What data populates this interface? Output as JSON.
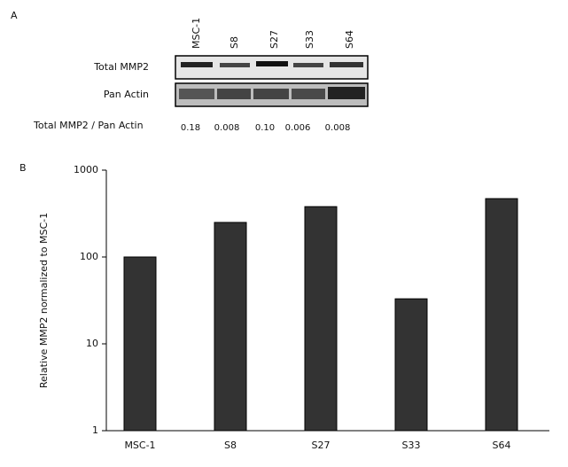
{
  "panel_a": {
    "label": "A",
    "lanes": [
      "MSC-1",
      "S8",
      "S27",
      "S33",
      "S64"
    ],
    "rows": [
      "Total MMP2",
      "Pan Actin"
    ],
    "ratio_label": "Total MMP2 / Pan Actin",
    "ratios": [
      "0.18",
      "0.008",
      "0.10",
      "0.006",
      "0.008"
    ]
  },
  "panel_b_label": "B",
  "chart_data": {
    "type": "bar",
    "ylabel": "Relative MMP2 normalized to MSC-1",
    "categories": [
      "MSC-1",
      "S8",
      "S27",
      "S33",
      "S64"
    ],
    "values": [
      100,
      250,
      380,
      33,
      470
    ],
    "color": "#333333",
    "log": true,
    "ylim": [
      1,
      1000
    ],
    "yticks": [
      1,
      10,
      100,
      1000
    ]
  }
}
